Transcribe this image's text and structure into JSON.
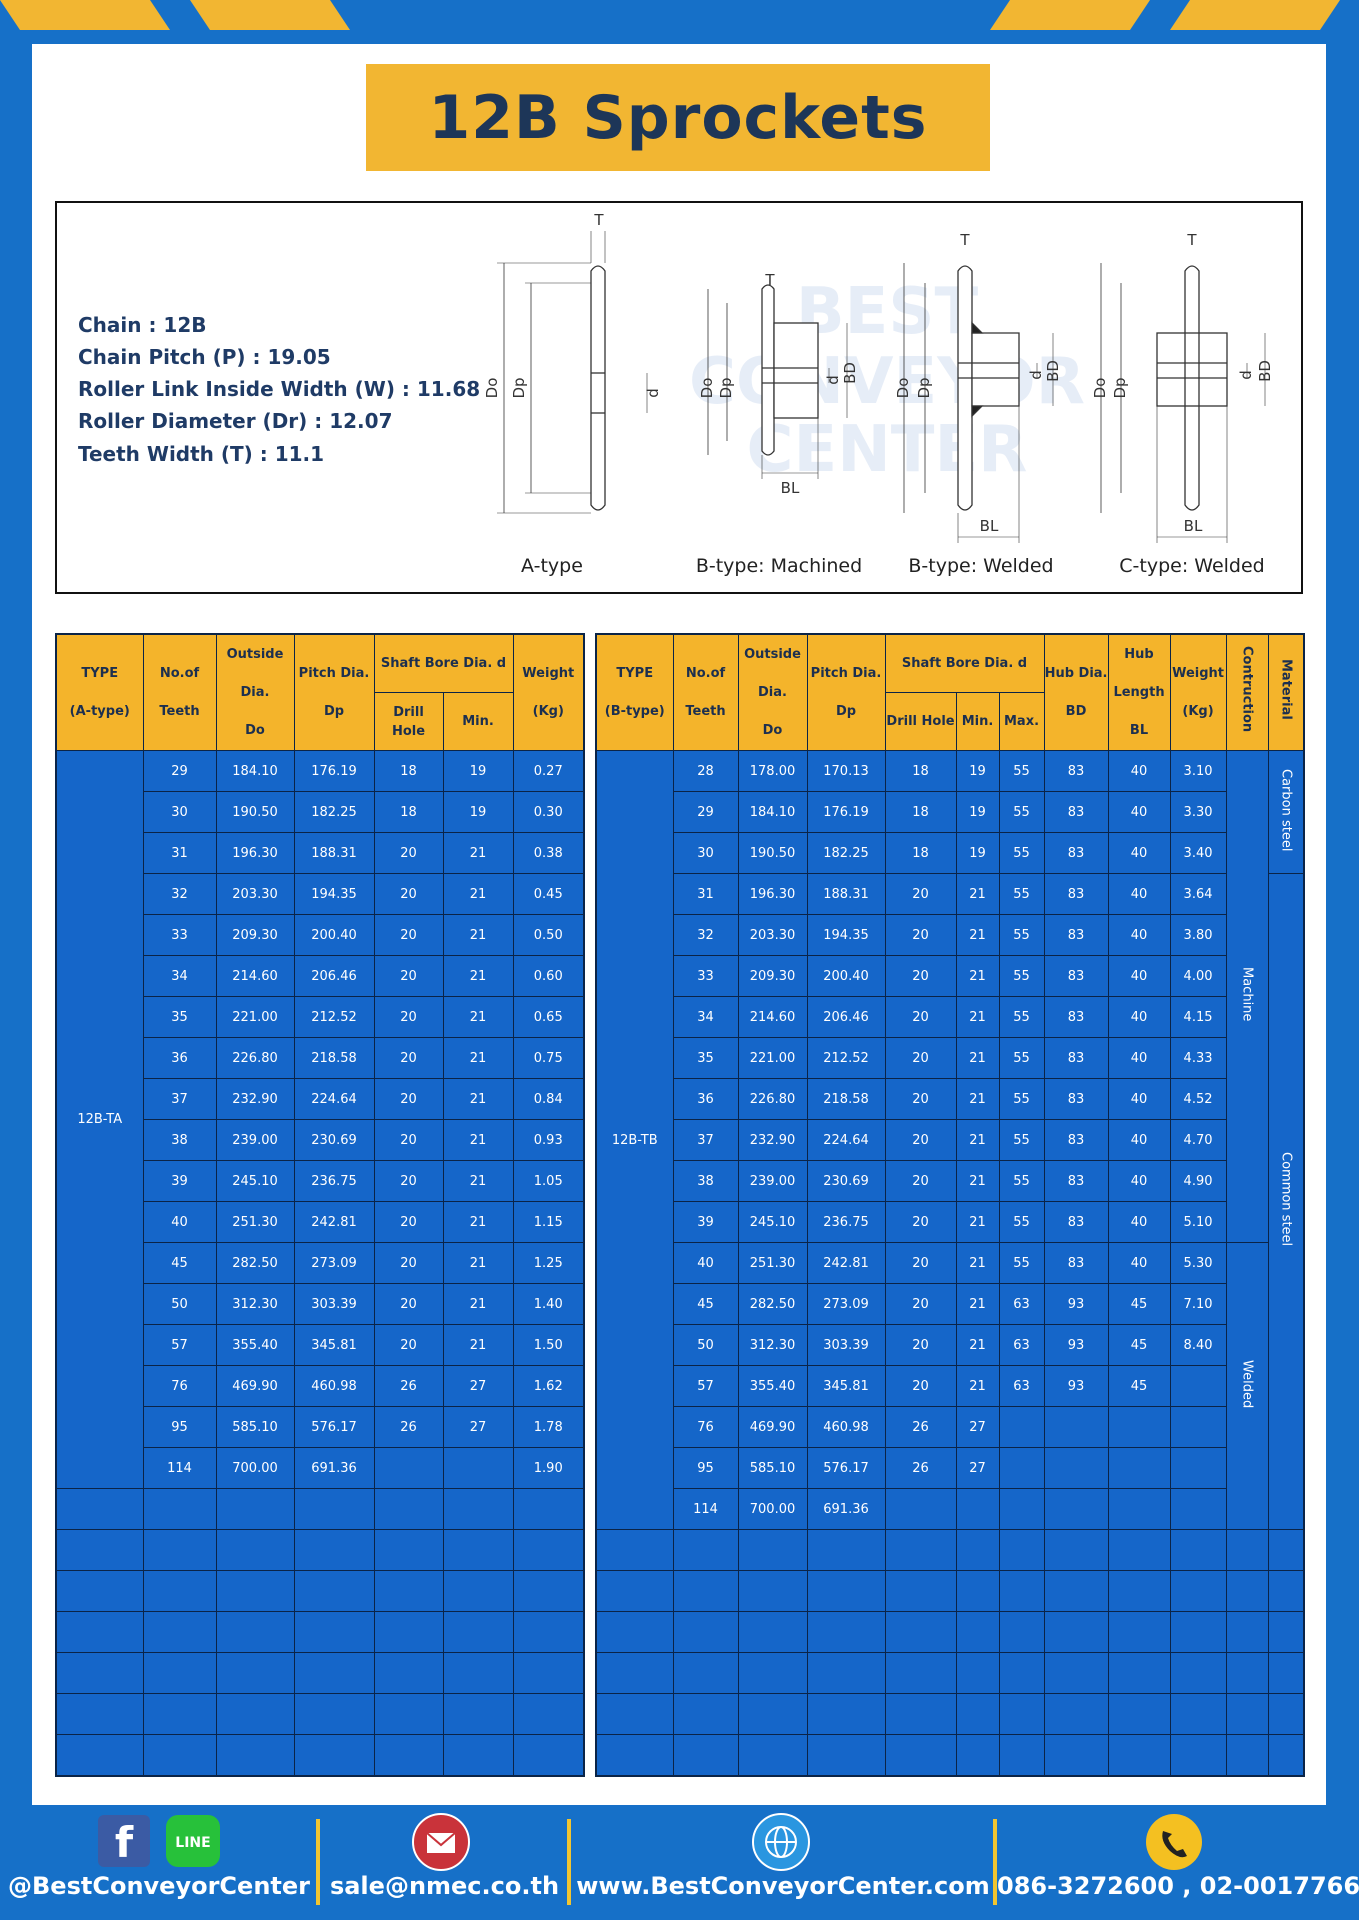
{
  "title": "12B Sprockets",
  "specs": [
    "Chain  :  12B",
    "Chain Pitch (P)  :  19.05",
    "Roller Link Inside Width (W) : 11.68",
    "Roller Diameter (Dr)  : 12.07",
    "Teeth Width (T)  :  11.1"
  ],
  "diagram": {
    "types": [
      "A-type",
      "B-type: Machined",
      "B-type: Welded",
      "C-type: Welded"
    ],
    "dims": {
      "t": "T",
      "do": "Do",
      "dp": "Dp",
      "d": "d",
      "bd": "BD",
      "bl": "BL"
    },
    "watermark": [
      "BEST",
      "CONVEYOR",
      "CENTER"
    ]
  },
  "table_a": {
    "header": {
      "type": [
        "TYPE",
        "(A-type)"
      ],
      "teeth": [
        "No.of",
        "Teeth"
      ],
      "outside": [
        "Outside",
        "Dia.",
        "Do"
      ],
      "pitch": [
        "Pitch Dia.",
        "Dp"
      ],
      "shaft": "Shaft Bore Dia. d",
      "drill": "Drill Hole",
      "min": "Min.",
      "weight": [
        "Weight",
        "(Kg)"
      ]
    },
    "type_label": "12B-TA",
    "rows": [
      [
        "29",
        "184.10",
        "176.19",
        "18",
        "19",
        "0.27"
      ],
      [
        "30",
        "190.50",
        "182.25",
        "18",
        "19",
        "0.30"
      ],
      [
        "31",
        "196.30",
        "188.31",
        "20",
        "21",
        "0.38"
      ],
      [
        "32",
        "203.30",
        "194.35",
        "20",
        "21",
        "0.45"
      ],
      [
        "33",
        "209.30",
        "200.40",
        "20",
        "21",
        "0.50"
      ],
      [
        "34",
        "214.60",
        "206.46",
        "20",
        "21",
        "0.60"
      ],
      [
        "35",
        "221.00",
        "212.52",
        "20",
        "21",
        "0.65"
      ],
      [
        "36",
        "226.80",
        "218.58",
        "20",
        "21",
        "0.75"
      ],
      [
        "37",
        "232.90",
        "224.64",
        "20",
        "21",
        "0.84"
      ],
      [
        "38",
        "239.00",
        "230.69",
        "20",
        "21",
        "0.93"
      ],
      [
        "39",
        "245.10",
        "236.75",
        "20",
        "21",
        "1.05"
      ],
      [
        "40",
        "251.30",
        "242.81",
        "20",
        "21",
        "1.15"
      ],
      [
        "45",
        "282.50",
        "273.09",
        "20",
        "21",
        "1.25"
      ],
      [
        "50",
        "312.30",
        "303.39",
        "20",
        "21",
        "1.40"
      ],
      [
        "57",
        "355.40",
        "345.81",
        "20",
        "21",
        "1.50"
      ],
      [
        "76",
        "469.90",
        "460.98",
        "26",
        "27",
        "1.62"
      ],
      [
        "95",
        "585.10",
        "576.17",
        "26",
        "27",
        "1.78"
      ],
      [
        "114",
        "700.00",
        "691.36",
        null,
        null,
        "1.90"
      ]
    ]
  },
  "table_b": {
    "header": {
      "type": [
        "TYPE",
        "(B-type)"
      ],
      "teeth": [
        "No.of",
        "Teeth"
      ],
      "outside": [
        "Outside",
        "Dia.",
        "Do"
      ],
      "pitch": [
        "Pitch Dia.",
        "Dp"
      ],
      "shaft": "Shaft Bore Dia. d",
      "drill": "Drill Hole",
      "min": "Min.",
      "max": "Max.",
      "hub_dia": [
        "Hub Dia.",
        "BD"
      ],
      "hub_length": [
        "Hub",
        "Length",
        "BL"
      ],
      "weight": [
        "Weight",
        "(Kg)"
      ],
      "construction": "Contruction",
      "material": "Material"
    },
    "type_label": "12B-TB",
    "rows": [
      [
        "28",
        "178.00",
        "170.13",
        "18",
        "19",
        "55",
        "83",
        "40",
        "3.10"
      ],
      [
        "29",
        "184.10",
        "176.19",
        "18",
        "19",
        "55",
        "83",
        "40",
        "3.30"
      ],
      [
        "30",
        "190.50",
        "182.25",
        "18",
        "19",
        "55",
        "83",
        "40",
        "3.40"
      ],
      [
        "31",
        "196.30",
        "188.31",
        "20",
        "21",
        "55",
        "83",
        "40",
        "3.64"
      ],
      [
        "32",
        "203.30",
        "194.35",
        "20",
        "21",
        "55",
        "83",
        "40",
        "3.80"
      ],
      [
        "33",
        "209.30",
        "200.40",
        "20",
        "21",
        "55",
        "83",
        "40",
        "4.00"
      ],
      [
        "34",
        "214.60",
        "206.46",
        "20",
        "21",
        "55",
        "83",
        "40",
        "4.15"
      ],
      [
        "35",
        "221.00",
        "212.52",
        "20",
        "21",
        "55",
        "83",
        "40",
        "4.33"
      ],
      [
        "36",
        "226.80",
        "218.58",
        "20",
        "21",
        "55",
        "83",
        "40",
        "4.52"
      ],
      [
        "37",
        "232.90",
        "224.64",
        "20",
        "21",
        "55",
        "83",
        "40",
        "4.70"
      ],
      [
        "38",
        "239.00",
        "230.69",
        "20",
        "21",
        "55",
        "83",
        "40",
        "4.90"
      ],
      [
        "39",
        "245.10",
        "236.75",
        "20",
        "21",
        "55",
        "83",
        "40",
        "5.10"
      ],
      [
        "40",
        "251.30",
        "242.81",
        "20",
        "21",
        "55",
        "83",
        "40",
        "5.30"
      ],
      [
        "45",
        "282.50",
        "273.09",
        "20",
        "21",
        "63",
        "93",
        "45",
        "7.10"
      ],
      [
        "50",
        "312.30",
        "303.39",
        "20",
        "21",
        "63",
        "93",
        "45",
        "8.40"
      ],
      [
        "57",
        "355.40",
        "345.81",
        "20",
        "21",
        "63",
        "93",
        "45",
        null
      ],
      [
        "76",
        "469.90",
        "460.98",
        "26",
        "27",
        null,
        null,
        null,
        null
      ],
      [
        "95",
        "585.10",
        "576.17",
        "26",
        "27",
        null,
        null,
        null,
        null
      ],
      [
        "114",
        "700.00",
        "691.36",
        null,
        null,
        null,
        null,
        null,
        null
      ]
    ],
    "construction": [
      "Machine",
      "Machine",
      "Machine",
      "Machine",
      "Machine",
      "Machine",
      "Machine",
      "Machine",
      "Machine",
      "Machine",
      "Machine",
      "Machine",
      "Welded",
      "Welded",
      "Welded",
      "Welded",
      "Welded",
      "Welded",
      "Welded"
    ],
    "material": [
      "Carbon steel",
      "Carbon steel",
      "Carbon steel",
      "Common steel",
      "Common steel",
      "Common steel",
      "Common steel",
      "Common steel",
      "Common steel",
      "Common steel",
      "Common steel",
      "Common steel",
      "Common steel",
      "Common steel",
      "Common steel",
      "Common steel",
      "Common steel",
      "Common steel",
      "Common steel"
    ]
  },
  "footer": {
    "icons": {
      "facebook": "f",
      "line": "LINE"
    },
    "social": "@BestConveyorCenter",
    "email": "sale@nmec.co.th",
    "web": "www.BestConveyorCenter.com",
    "phone": "086-3272600 , 02-0017766"
  }
}
